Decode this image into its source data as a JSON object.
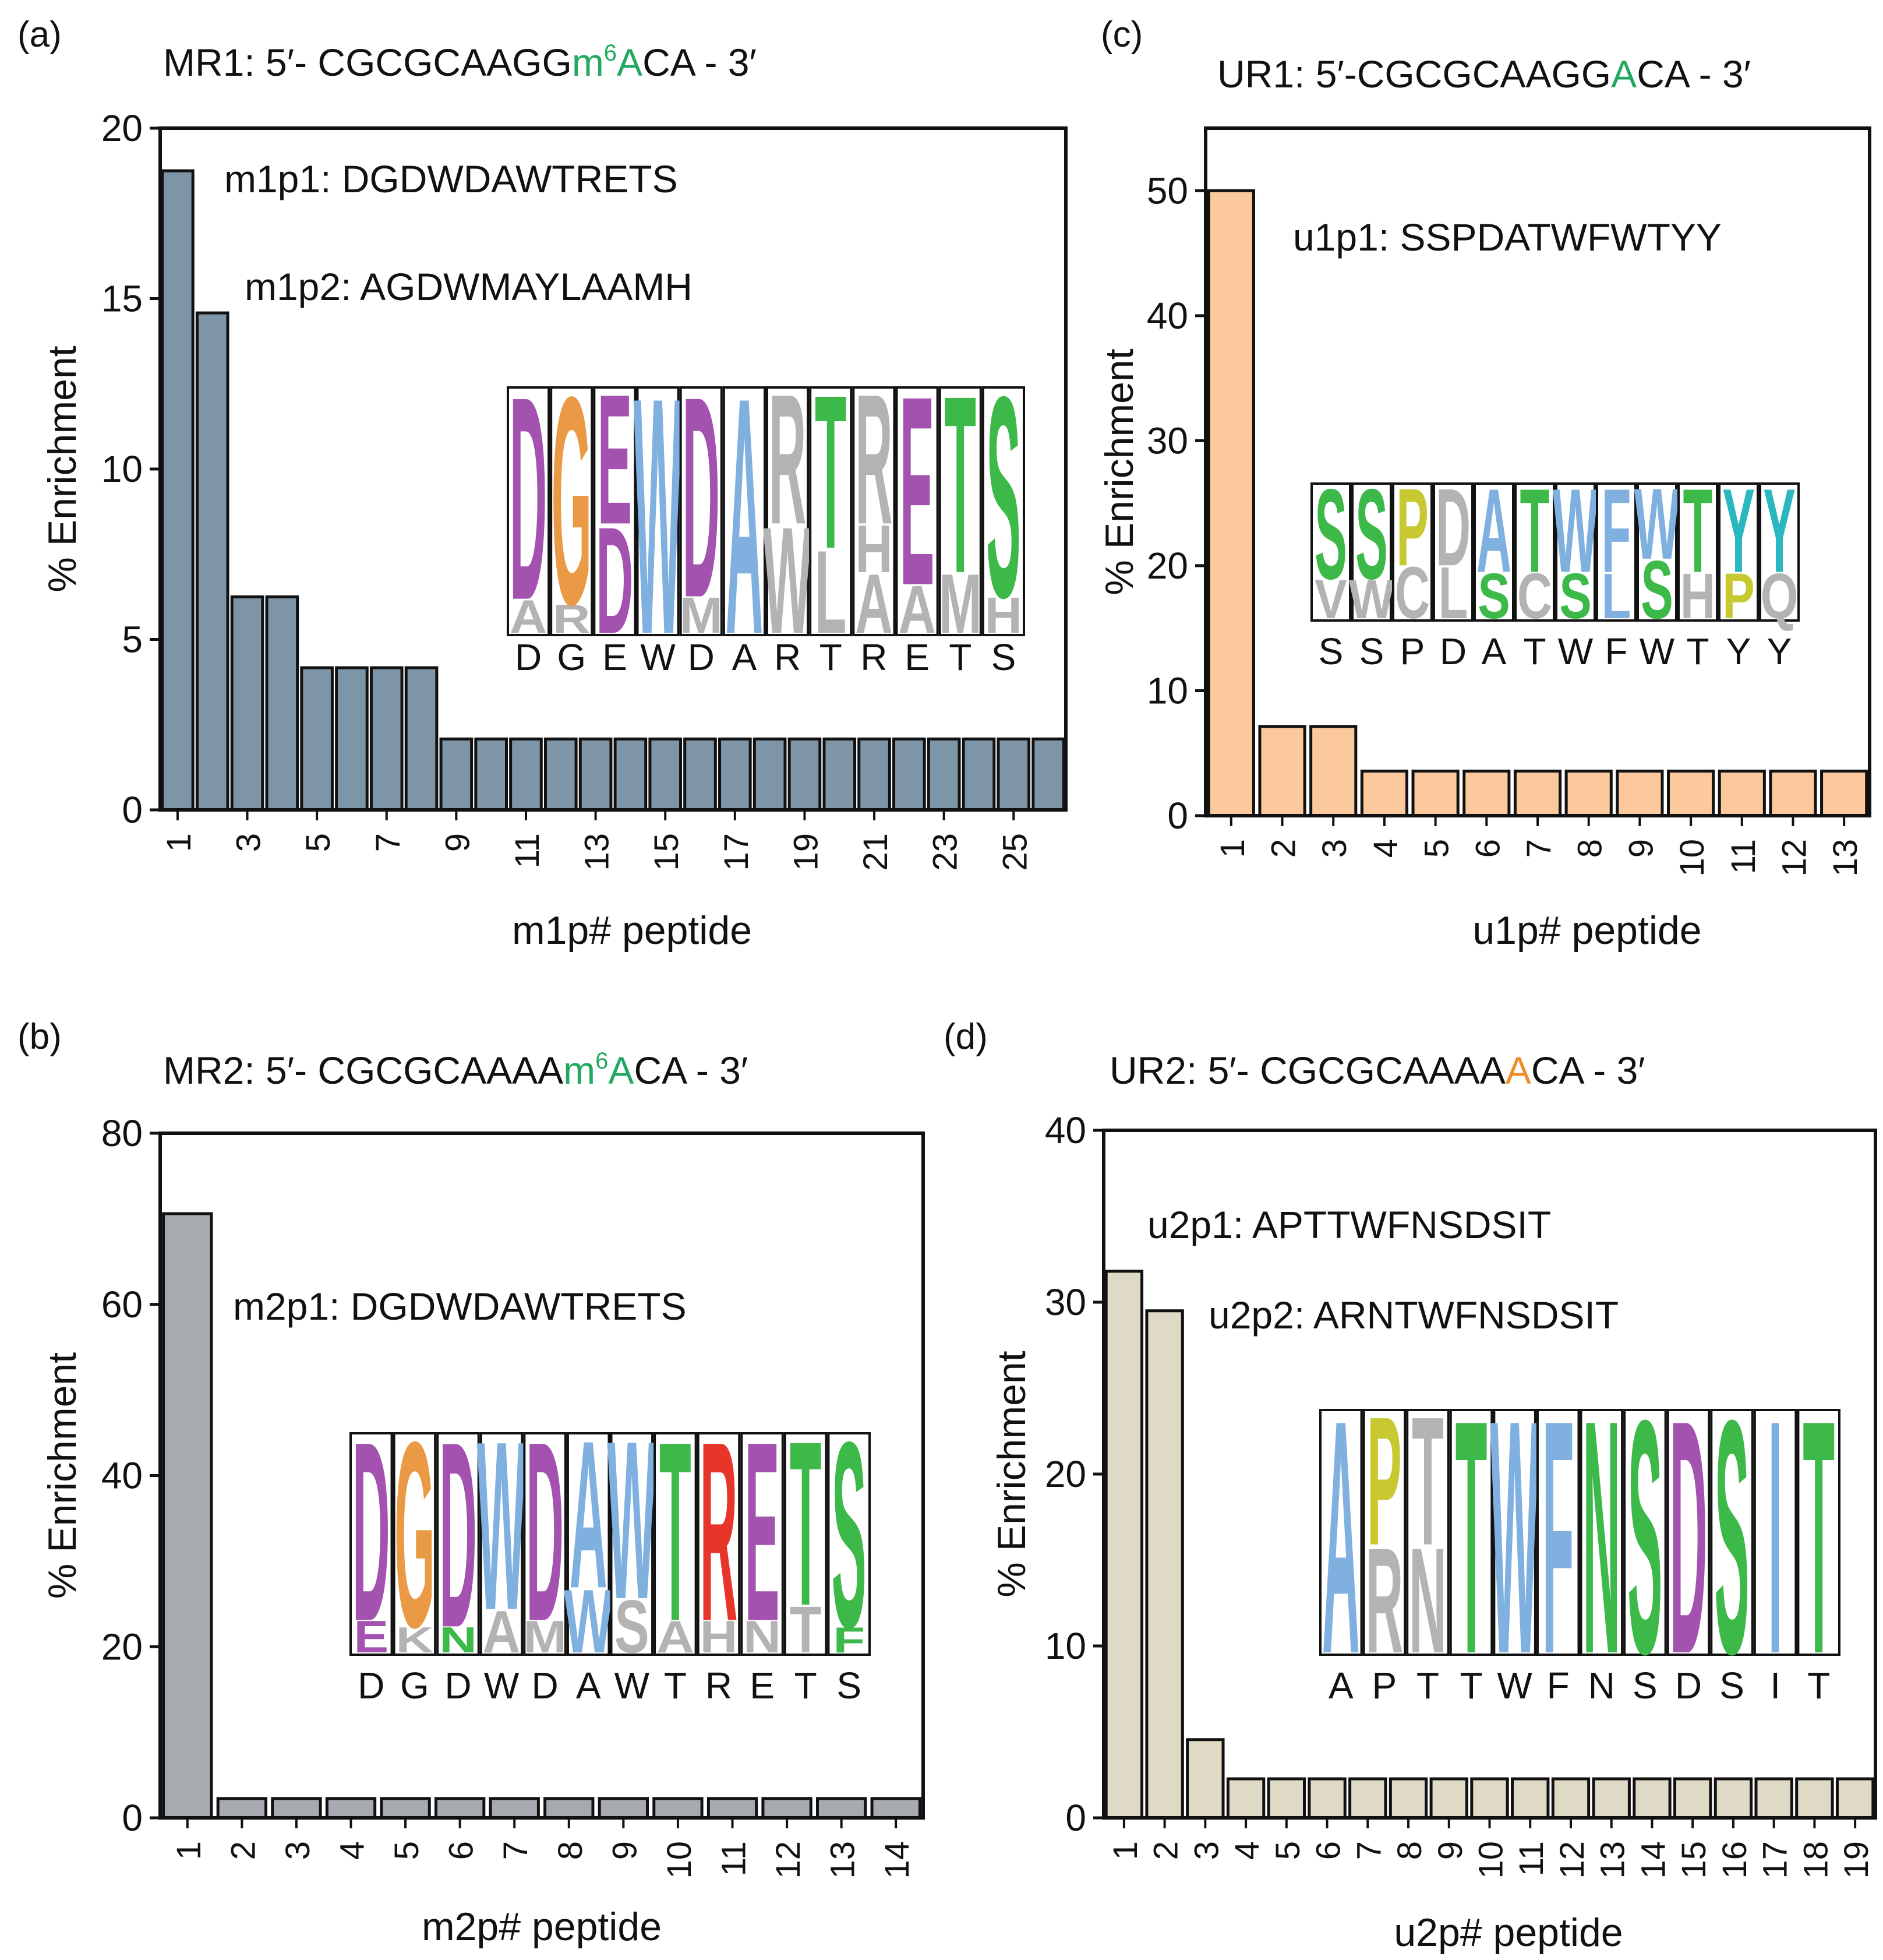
{
  "colors": {
    "magenta": "#a352b0",
    "orange": "#ea9a45",
    "blue": "#7fb0df",
    "green": "#3cb949",
    "gray": "#b3b3b3",
    "yellow": "#c8c830",
    "red": "#e8352a",
    "cyan": "#2ab7c0",
    "m6a_green": "#22a860",
    "a_orange": "#f08c28"
  },
  "chart_data": [
    {
      "type": "bar",
      "panel": "(a)",
      "title_parts": [
        {
          "text": "MR1: 5′- CGCGCAAGG",
          "color": ""
        },
        {
          "text": "m",
          "color": "m6a_green"
        },
        {
          "text": "6",
          "color": "m6a_green",
          "sup": true
        },
        {
          "text": "A",
          "color": "m6a_green"
        },
        {
          "text": "CA - 3′",
          "color": ""
        }
      ],
      "ylabel": "% Enrichment",
      "xlabel": "m1p# peptide",
      "ylim": [
        0,
        20
      ],
      "yticks": [
        0,
        5,
        10,
        15,
        20
      ],
      "bar_color": "#7d95a6",
      "values": [
        18.75,
        14.58,
        6.25,
        6.25,
        4.17,
        4.17,
        4.17,
        4.17,
        2.08,
        2.08,
        2.08,
        2.08,
        2.08,
        2.08,
        2.08,
        2.08,
        2.08,
        2.08,
        2.08,
        2.08,
        2.08,
        2.08,
        2.08,
        2.08,
        2.08,
        2.08
      ],
      "tick_labels": [
        "1",
        "",
        "3",
        "",
        "5",
        "",
        "7",
        "",
        "9",
        "",
        "11",
        "",
        "13",
        "",
        "15",
        "",
        "17",
        "",
        "19",
        "",
        "21",
        "",
        "23",
        "",
        "25",
        ""
      ],
      "annotations": [
        "m1p1: DGDWDAWTRETS",
        "m1p2: AGDWMAYLAAMH"
      ],
      "logo": {
        "letters": [
          "D",
          "G",
          "E",
          "W",
          "D",
          "A",
          "R",
          "T",
          "R",
          "E",
          "T",
          "S"
        ],
        "stack_tops": [
          11.0,
          11.4,
          0,
          0,
          11.3,
          12.2,
          0,
          0,
          0,
          0,
          0,
          11.0
        ],
        "columns": [
          [
            {
              "letter": "A",
              "color": "gray",
              "frac": 0.14
            },
            {
              "letter": "D",
              "color": "magenta",
              "frac": 0.86
            }
          ],
          [
            {
              "letter": "R",
              "color": "gray",
              "frac": 0.12
            },
            {
              "letter": "G",
              "color": "orange",
              "frac": 0.88
            }
          ],
          [
            {
              "letter": "D",
              "color": "magenta",
              "frac": 0.45
            },
            {
              "letter": "E",
              "color": "magenta",
              "frac": 0.55
            }
          ],
          [
            {
              "letter": "W",
              "color": "blue",
              "frac": 1.0
            }
          ],
          [
            {
              "letter": "M",
              "color": "gray",
              "frac": 0.15
            },
            {
              "letter": "D",
              "color": "magenta",
              "frac": 0.85
            }
          ],
          [
            {
              "letter": "A",
              "color": "blue",
              "frac": 1.0
            }
          ],
          [
            {
              "letter": "W",
              "color": "gray",
              "frac": 0.45
            },
            {
              "letter": "R",
              "color": "gray",
              "frac": 0.55
            }
          ],
          [
            {
              "letter": "L",
              "color": "gray",
              "frac": 0.35
            },
            {
              "letter": "T",
              "color": "green",
              "frac": 0.65
            }
          ],
          [
            {
              "letter": "A",
              "color": "gray",
              "frac": 0.25
            },
            {
              "letter": "H",
              "color": "gray",
              "frac": 0.2
            },
            {
              "letter": "R",
              "color": "gray",
              "frac": 0.55
            }
          ],
          [
            {
              "letter": "A",
              "color": "gray",
              "frac": 0.2
            },
            {
              "letter": "E",
              "color": "magenta",
              "frac": 0.8
            }
          ],
          [
            {
              "letter": "M",
              "color": "gray",
              "frac": 0.25
            },
            {
              "letter": "T",
              "color": "green",
              "frac": 0.75
            }
          ],
          [
            {
              "letter": "H",
              "color": "gray",
              "frac": 0.15
            },
            {
              "letter": "S",
              "color": "green",
              "frac": 0.85
            }
          ]
        ]
      }
    },
    {
      "type": "bar",
      "panel": "(b)",
      "title_parts": [
        {
          "text": "MR2: 5′- CGCGCAAAA",
          "color": ""
        },
        {
          "text": "m",
          "color": "m6a_green"
        },
        {
          "text": "6",
          "color": "m6a_green",
          "sup": true
        },
        {
          "text": "A",
          "color": "m6a_green"
        },
        {
          "text": "CA - 3′",
          "color": ""
        }
      ],
      "ylabel": "% Enrichment",
      "xlabel": "m2p# peptide",
      "ylim": [
        0,
        80
      ],
      "yticks": [
        0,
        20,
        40,
        60,
        80
      ],
      "bar_color": "#a7abb0",
      "values": [
        70.6,
        2.26,
        2.26,
        2.26,
        2.26,
        2.26,
        2.26,
        2.26,
        2.26,
        2.26,
        2.26,
        2.26,
        2.26,
        2.26
      ],
      "tick_labels": [
        "1",
        "2",
        "3",
        "4",
        "5",
        "6",
        "7",
        "8",
        "9",
        "10",
        "11",
        "12",
        "13",
        "14"
      ],
      "annotations": [
        "m2p1: DGDWDAWTRETS"
      ],
      "logo": {
        "letters": [
          "D",
          "G",
          "D",
          "W",
          "D",
          "A",
          "W",
          "T",
          "R",
          "E",
          "T",
          "S"
        ],
        "columns": [
          [
            {
              "letter": "E",
              "color": "magenta",
              "frac": 0.15
            },
            {
              "letter": "D",
              "color": "magenta",
              "frac": 0.85
            }
          ],
          [
            {
              "letter": "K",
              "color": "gray",
              "frac": 0.12
            },
            {
              "letter": "G",
              "color": "orange",
              "frac": 0.88
            }
          ],
          [
            {
              "letter": "N",
              "color": "green",
              "frac": 0.12
            },
            {
              "letter": "D",
              "color": "magenta",
              "frac": 0.88
            }
          ],
          [
            {
              "letter": "A",
              "color": "gray",
              "frac": 0.2
            },
            {
              "letter": "W",
              "color": "blue",
              "frac": 0.8
            }
          ],
          [
            {
              "letter": "M",
              "color": "gray",
              "frac": 0.15
            },
            {
              "letter": "D",
              "color": "magenta",
              "frac": 0.85
            }
          ],
          [
            {
              "letter": "W",
              "color": "blue",
              "frac": 0.3
            },
            {
              "letter": "A",
              "color": "blue",
              "frac": 0.7
            }
          ],
          [
            {
              "letter": "S",
              "color": "gray",
              "frac": 0.25
            },
            {
              "letter": "W",
              "color": "blue",
              "frac": 0.75
            }
          ],
          [
            {
              "letter": "A",
              "color": "gray",
              "frac": 0.15
            },
            {
              "letter": "T",
              "color": "green",
              "frac": 0.85
            }
          ],
          [
            {
              "letter": "H",
              "color": "gray",
              "frac": 0.15
            },
            {
              "letter": "R",
              "color": "red",
              "frac": 0.85
            }
          ],
          [
            {
              "letter": "N",
              "color": "gray",
              "frac": 0.15
            },
            {
              "letter": "E",
              "color": "magenta",
              "frac": 0.85
            }
          ],
          [
            {
              "letter": "T",
              "color": "gray",
              "frac": 0.22
            },
            {
              "letter": "T",
              "color": "green",
              "frac": 0.78
            }
          ],
          [
            {
              "letter": "F",
              "color": "green",
              "frac": 0.12
            },
            {
              "letter": "S",
              "color": "green",
              "frac": 0.88
            }
          ]
        ]
      }
    },
    {
      "type": "bar",
      "panel": "(c)",
      "title_parts": [
        {
          "text": "UR1: 5′-CGCGCAAGG",
          "color": ""
        },
        {
          "text": "A",
          "color": "m6a_green"
        },
        {
          "text": "CA - 3′",
          "color": ""
        }
      ],
      "ylabel": "% Enrichment",
      "xlabel": "u1p# peptide",
      "ylim": [
        0,
        55
      ],
      "yticks": [
        0,
        10,
        20,
        30,
        40,
        50
      ],
      "bar_color": "#fbc99b",
      "values": [
        50.0,
        7.14,
        7.14,
        3.57,
        3.57,
        3.57,
        3.57,
        3.57,
        3.57,
        3.57,
        3.57,
        3.57,
        3.57
      ],
      "tick_labels": [
        "1",
        "2",
        "3",
        "4",
        "5",
        "6",
        "7",
        "8",
        "9",
        "10",
        "11",
        "12",
        "13"
      ],
      "annotations": [
        "u1p1: SSPDATWFWTYY"
      ],
      "logo": {
        "letters": [
          "S",
          "S",
          "P",
          "D",
          "A",
          "T",
          "W",
          "F",
          "W",
          "T",
          "Y",
          "Y"
        ],
        "columns": [
          [
            {
              "letter": "V",
              "color": "gray",
              "frac": 0.3
            },
            {
              "letter": "S",
              "color": "green",
              "frac": 0.7
            }
          ],
          [
            {
              "letter": "W",
              "color": "gray",
              "frac": 0.3
            },
            {
              "letter": "S",
              "color": "green",
              "frac": 0.7
            }
          ],
          [
            {
              "letter": "C",
              "color": "gray",
              "frac": 0.4
            },
            {
              "letter": "P",
              "color": "yellow",
              "frac": 0.6
            }
          ],
          [
            {
              "letter": "L",
              "color": "gray",
              "frac": 0.4
            },
            {
              "letter": "D",
              "color": "gray",
              "frac": 0.6
            }
          ],
          [
            {
              "letter": "S",
              "color": "green",
              "frac": 0.35
            },
            {
              "letter": "A",
              "color": "blue",
              "frac": 0.65
            }
          ],
          [
            {
              "letter": "C",
              "color": "gray",
              "frac": 0.35
            },
            {
              "letter": "T",
              "color": "green",
              "frac": 0.65
            }
          ],
          [
            {
              "letter": "S",
              "color": "green",
              "frac": 0.35
            },
            {
              "letter": "W",
              "color": "blue",
              "frac": 0.65
            }
          ],
          [
            {
              "letter": "L",
              "color": "blue",
              "frac": 0.35
            },
            {
              "letter": "F",
              "color": "blue",
              "frac": 0.65
            }
          ],
          [
            {
              "letter": "S",
              "color": "green",
              "frac": 0.45
            },
            {
              "letter": "W",
              "color": "blue",
              "frac": 0.55
            }
          ],
          [
            {
              "letter": "H",
              "color": "gray",
              "frac": 0.35
            },
            {
              "letter": "T",
              "color": "green",
              "frac": 0.65
            }
          ],
          [
            {
              "letter": "P",
              "color": "yellow",
              "frac": 0.35
            },
            {
              "letter": "Y",
              "color": "cyan",
              "frac": 0.65
            }
          ],
          [
            {
              "letter": "Q",
              "color": "gray",
              "frac": 0.35
            },
            {
              "letter": "Y",
              "color": "cyan",
              "frac": 0.65
            }
          ]
        ]
      }
    },
    {
      "type": "bar",
      "panel": "(d)",
      "title_parts": [
        {
          "text": "UR2: 5′- CGCGCAAAA",
          "color": ""
        },
        {
          "text": "A",
          "color": "a_orange"
        },
        {
          "text": "CA - 3′",
          "color": ""
        }
      ],
      "ylabel": "% Enrichment",
      "xlabel": "u2p# peptide",
      "ylim": [
        0,
        40
      ],
      "yticks": [
        0,
        10,
        20,
        30,
        40
      ],
      "bar_color": "#dfdac6",
      "values": [
        31.8,
        29.5,
        4.55,
        2.27,
        2.27,
        2.27,
        2.27,
        2.27,
        2.27,
        2.27,
        2.27,
        2.27,
        2.27,
        2.27,
        2.27,
        2.27,
        2.27,
        2.27,
        2.27
      ],
      "tick_labels": [
        "1",
        "2",
        "3",
        "4",
        "5",
        "6",
        "7",
        "8",
        "9",
        "10",
        "11",
        "12",
        "13",
        "14",
        "15",
        "16",
        "17",
        "18",
        "19"
      ],
      "annotations": [
        "u2p1: APTTWFNSDSIT",
        "u2p2: ARNTWFNSDSIT"
      ],
      "logo": {
        "letters": [
          "A",
          "P",
          "T",
          "T",
          "W",
          "F",
          "N",
          "S",
          "D",
          "S",
          "I",
          "T"
        ],
        "columns": [
          [
            {
              "letter": "A",
              "color": "blue",
              "frac": 1.0
            }
          ],
          [
            {
              "letter": "R",
              "color": "gray",
              "frac": 0.45
            },
            {
              "letter": "P",
              "color": "yellow",
              "frac": 0.55
            }
          ],
          [
            {
              "letter": "N",
              "color": "gray",
              "frac": 0.45
            },
            {
              "letter": "T",
              "color": "gray",
              "frac": 0.55
            }
          ],
          [
            {
              "letter": "T",
              "color": "green",
              "frac": 1.0
            }
          ],
          [
            {
              "letter": "W",
              "color": "blue",
              "frac": 1.0
            }
          ],
          [
            {
              "letter": "F",
              "color": "blue",
              "frac": 1.0
            }
          ],
          [
            {
              "letter": "N",
              "color": "green",
              "frac": 1.0
            }
          ],
          [
            {
              "letter": "S",
              "color": "green",
              "frac": 1.0
            }
          ],
          [
            {
              "letter": "D",
              "color": "magenta",
              "frac": 1.0
            }
          ],
          [
            {
              "letter": "S",
              "color": "green",
              "frac": 1.0
            }
          ],
          [
            {
              "letter": "I",
              "color": "blue",
              "frac": 1.0
            }
          ],
          [
            {
              "letter": "T",
              "color": "green",
              "frac": 1.0
            }
          ]
        ]
      }
    }
  ]
}
